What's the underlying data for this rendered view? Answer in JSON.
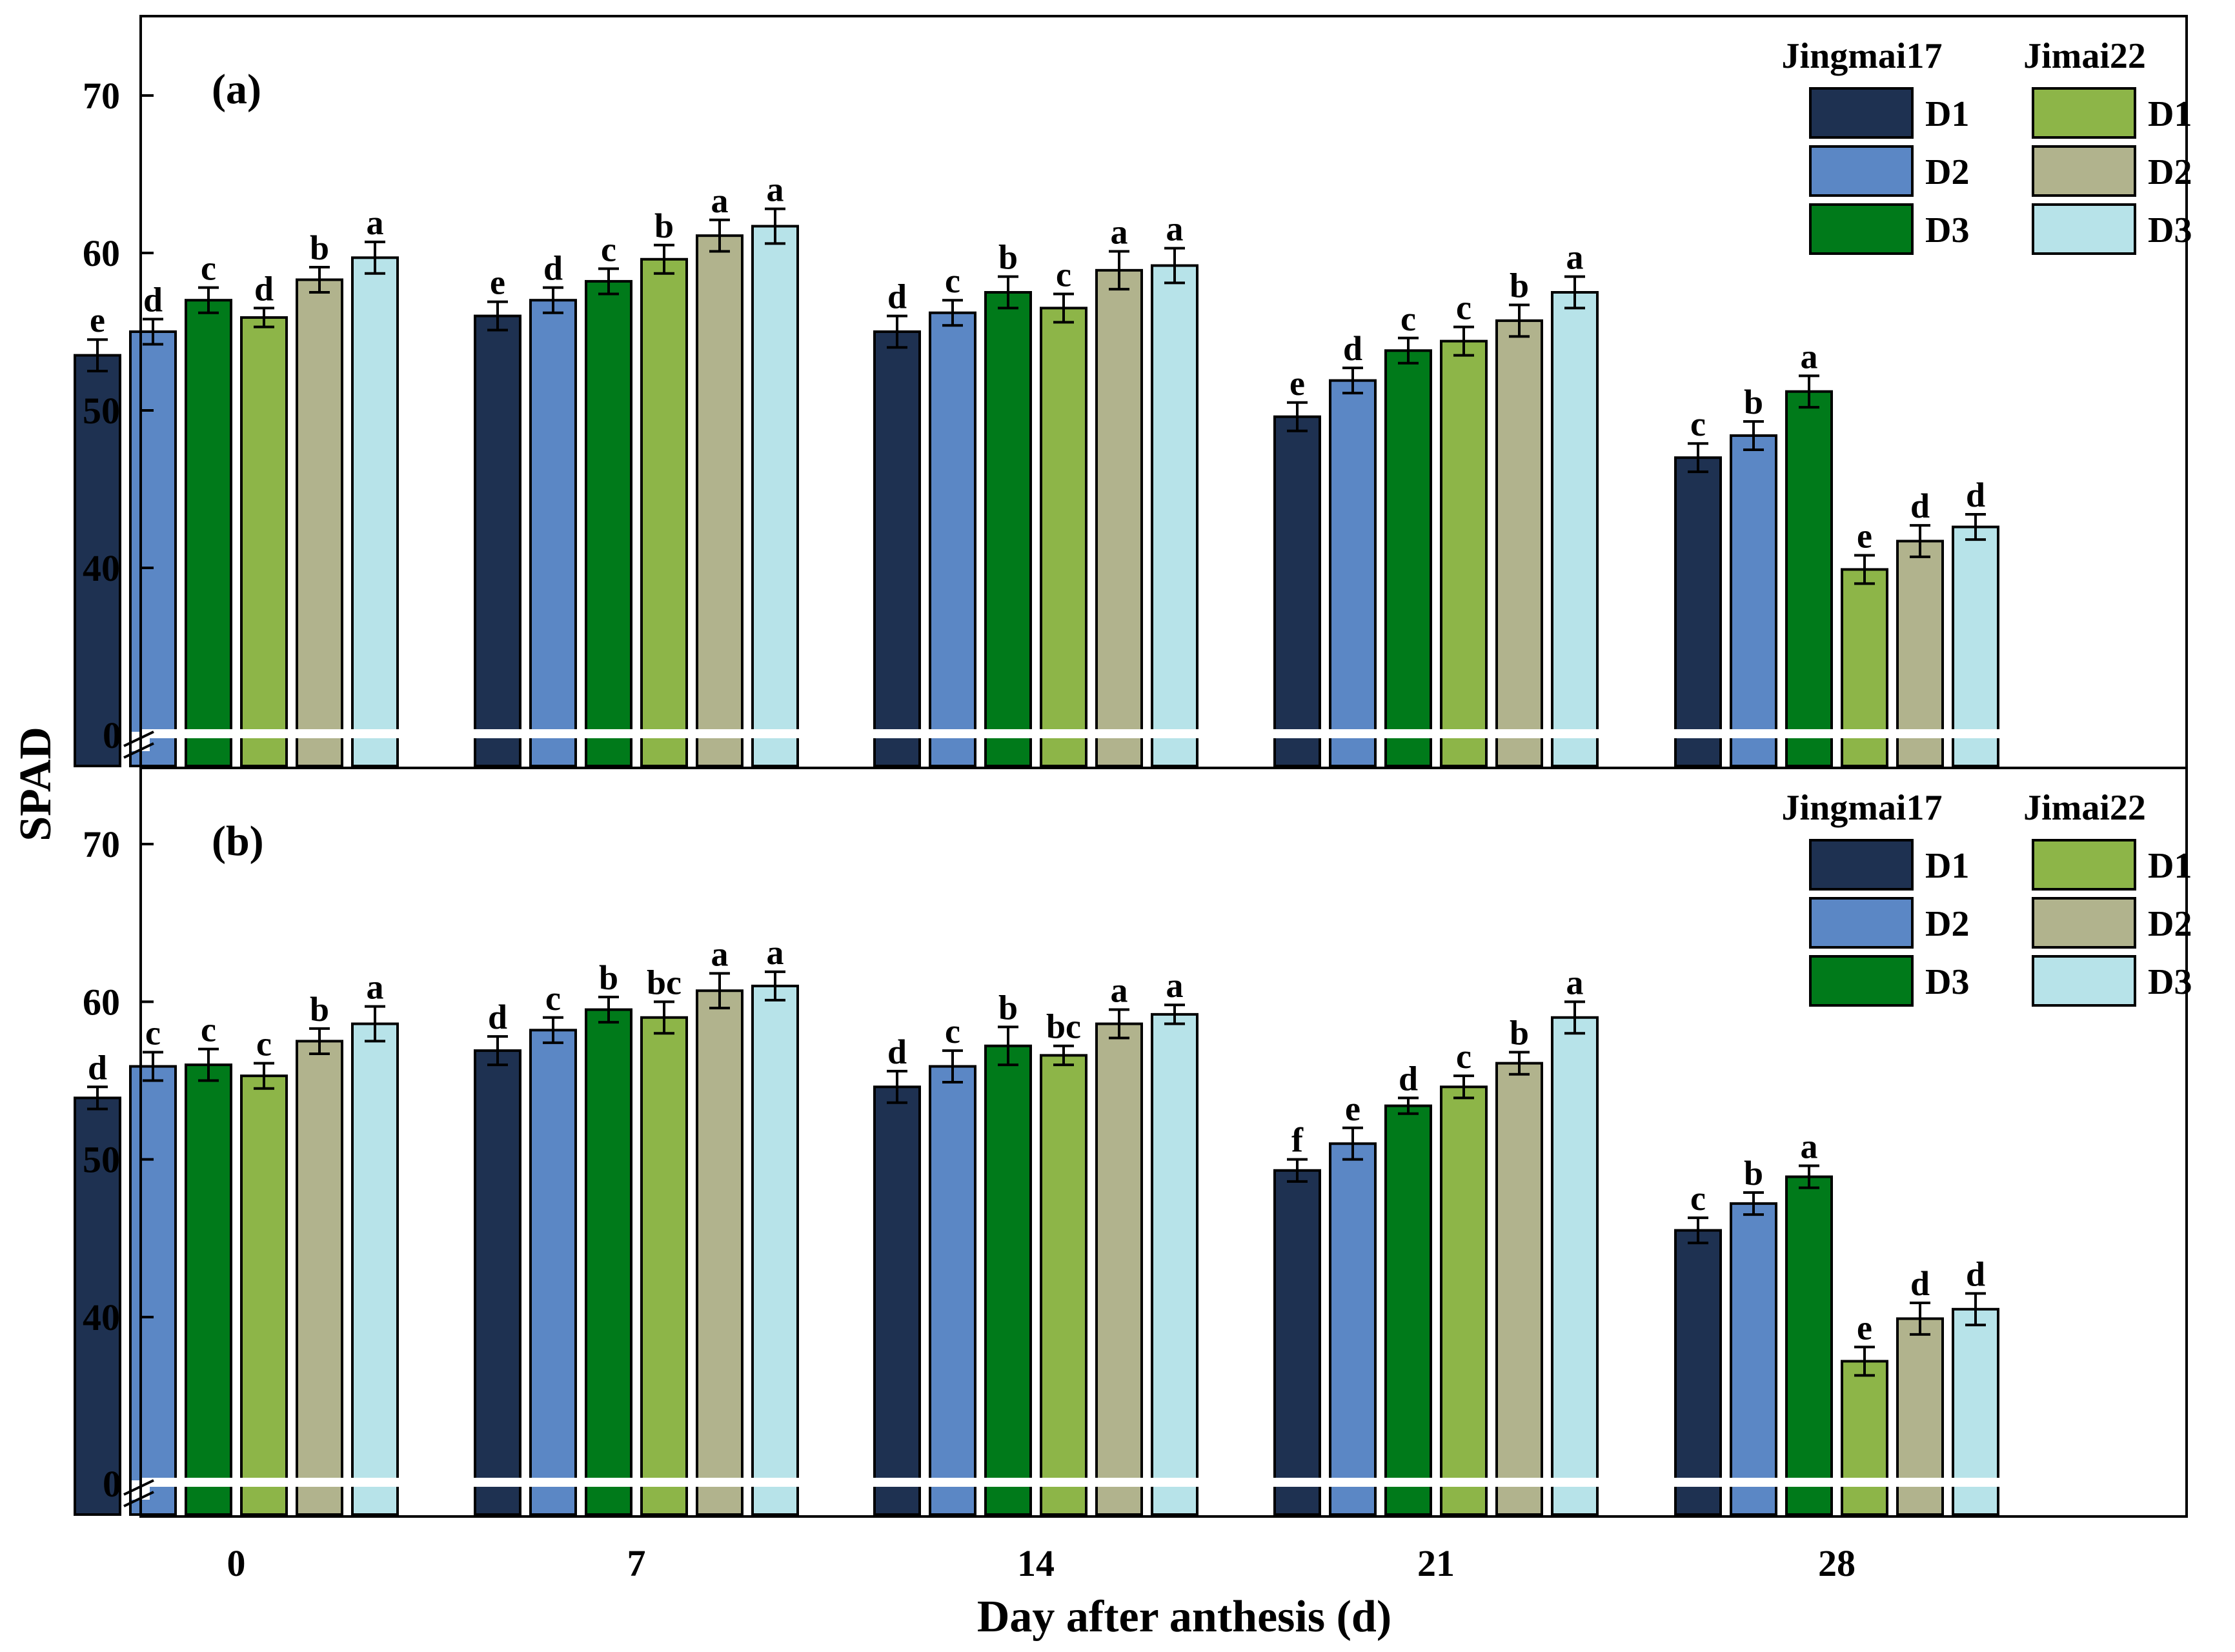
{
  "chart_data": [
    {
      "type": "bar",
      "panel_label": "(a)",
      "categories": [
        "0",
        "7",
        "14",
        "21",
        "28"
      ],
      "ylabel": "SPAD",
      "xlabel": "Day after anthesis (d)",
      "yticks": [
        "0",
        "40",
        "50",
        "60",
        "70"
      ],
      "ylim": [
        30,
        73
      ],
      "axis_break": true,
      "series": [
        {
          "name": "Jingmai17 D1",
          "color": "#1e3151",
          "values": [
            53.5,
            56.0,
            55.0,
            49.6,
            47.0
          ],
          "errors": [
            1.0,
            0.9,
            1.0,
            0.9,
            0.9
          ],
          "letters": [
            "e",
            "e",
            "d",
            "e",
            "c"
          ]
        },
        {
          "name": "Jingmai17 D2",
          "color": "#5b87c5",
          "values": [
            55.0,
            57.0,
            56.2,
            51.9,
            48.4
          ],
          "errors": [
            0.8,
            0.8,
            0.8,
            0.8,
            0.9
          ],
          "letters": [
            "d",
            "d",
            "c",
            "d",
            "b"
          ]
        },
        {
          "name": "Jingmai17 D3",
          "color": "#007a1a",
          "values": [
            57.0,
            58.2,
            57.5,
            53.8,
            51.2
          ],
          "errors": [
            0.8,
            0.8,
            1.0,
            0.8,
            1.0
          ],
          "letters": [
            "c",
            "c",
            "b",
            "c",
            "a"
          ]
        },
        {
          "name": "Jimai22 D1",
          "color": "#8db548",
          "values": [
            55.9,
            59.6,
            56.5,
            54.4,
            39.9
          ],
          "errors": [
            0.6,
            0.9,
            0.9,
            0.9,
            0.9
          ],
          "letters": [
            "d",
            "b",
            "c",
            "c",
            "e"
          ]
        },
        {
          "name": "Jimai22 D2",
          "color": "#b1b38d",
          "values": [
            58.3,
            61.1,
            58.9,
            55.7,
            41.7
          ],
          "errors": [
            0.8,
            1.0,
            1.2,
            1.0,
            1.0
          ],
          "letters": [
            "b",
            "a",
            "a",
            "b",
            "d"
          ]
        },
        {
          "name": "Jimai22 D3",
          "color": "#b7e3e9",
          "values": [
            59.7,
            61.7,
            59.2,
            57.5,
            42.6
          ],
          "errors": [
            1.0,
            1.1,
            1.1,
            1.0,
            0.8
          ],
          "letters": [
            "a",
            "a",
            "a",
            "a",
            "d"
          ]
        }
      ],
      "legend": {
        "groups": [
          {
            "title": "Jingmai17",
            "items": [
              "D1",
              "D2",
              "D3"
            ]
          },
          {
            "title": "Jimai22",
            "items": [
              "D1",
              "D2",
              "D3"
            ]
          }
        ],
        "placement": "top-right"
      }
    },
    {
      "type": "bar",
      "panel_label": "(b)",
      "categories": [
        "0",
        "7",
        "14",
        "21",
        "28"
      ],
      "ylabel": "SPAD",
      "xlabel": "Day after anthesis (d)",
      "yticks": [
        "0",
        "40",
        "50",
        "60",
        "70"
      ],
      "ylim": [
        30,
        73
      ],
      "axis_break": true,
      "series": [
        {
          "name": "Jingmai17 D1",
          "color": "#1e3151",
          "values": [
            53.9,
            56.9,
            54.6,
            49.3,
            45.5
          ],
          "errors": [
            0.7,
            0.9,
            1.0,
            0.7,
            0.8
          ],
          "letters": [
            "d",
            "d",
            "d",
            "f",
            "c"
          ]
        },
        {
          "name": "Jingmai17 D2",
          "color": "#5b87c5",
          "values": [
            55.9,
            58.2,
            55.9,
            51.0,
            47.2
          ],
          "errors": [
            0.9,
            0.8,
            1.0,
            1.0,
            0.7
          ],
          "letters": [
            "c",
            "c",
            "c",
            "e",
            "b"
          ]
        },
        {
          "name": "Jingmai17 D3",
          "color": "#007a1a",
          "values": [
            56.0,
            59.5,
            57.2,
            53.4,
            48.9
          ],
          "errors": [
            1.0,
            0.8,
            1.2,
            0.5,
            0.7
          ],
          "letters": [
            "c",
            "b",
            "b",
            "d",
            "a"
          ]
        },
        {
          "name": "Jimai22 D1",
          "color": "#8db548",
          "values": [
            55.3,
            59.0,
            56.6,
            54.6,
            37.2
          ],
          "errors": [
            0.8,
            1.0,
            0.6,
            0.7,
            0.9
          ],
          "letters": [
            "c",
            "bc",
            "bc",
            "c",
            "e"
          ]
        },
        {
          "name": "Jimai22 D2",
          "color": "#b1b38d",
          "values": [
            57.5,
            60.7,
            58.6,
            56.1,
            39.9
          ],
          "errors": [
            0.8,
            1.1,
            0.9,
            0.7,
            1.0
          ],
          "letters": [
            "b",
            "a",
            "a",
            "b",
            "d"
          ]
        },
        {
          "name": "Jimai22 D3",
          "color": "#b7e3e9",
          "values": [
            58.6,
            61.0,
            59.2,
            59.0,
            40.5
          ],
          "errors": [
            1.1,
            0.9,
            0.6,
            1.0,
            1.0
          ],
          "letters": [
            "a",
            "a",
            "a",
            "a",
            "d"
          ]
        }
      ],
      "legend": {
        "groups": [
          {
            "title": "Jingmai17",
            "items": [
              "D1",
              "D2",
              "D3"
            ]
          },
          {
            "title": "Jimai22",
            "items": [
              "D1",
              "D2",
              "D3"
            ]
          }
        ],
        "placement": "top-right"
      }
    }
  ]
}
